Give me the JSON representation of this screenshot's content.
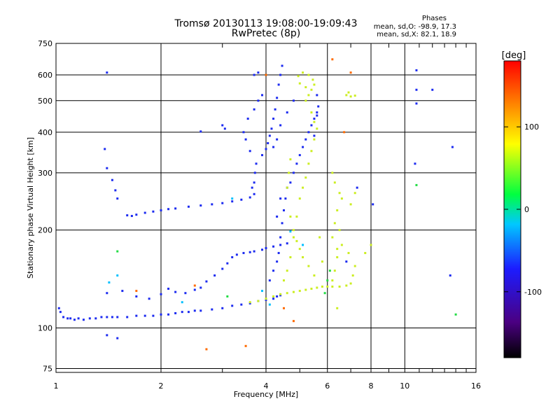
{
  "header": {
    "title_line1": "Tromsø 20130113 19:08:00-19:09:43",
    "title_line2": "RwPretec (8p)"
  },
  "phase_box": {
    "heading": "Phases",
    "line_o": "mean, sd,O: -98.9, 17.3",
    "line_x": "mean, sd,X:  82.1, 18.9"
  },
  "chart_data": {
    "type": "scatter",
    "title": "Tromsø 20130113 19:08:00-19:09:43",
    "subtitle": "RwPretec (8p)",
    "xlabel": "Frequency [MHz]",
    "ylabel": "Stationary phase Virtual Height [km]",
    "x_scale": "log",
    "y_scale": "log",
    "xlim": [
      1,
      16
    ],
    "ylim": [
      73,
      750
    ],
    "x_ticks": [
      1,
      2,
      4,
      6,
      8,
      10,
      16
    ],
    "x_minor_ticks": [
      3,
      5,
      7,
      9,
      11,
      12,
      13,
      14,
      15
    ],
    "y_ticks": [
      75,
      100,
      200,
      300,
      400,
      500,
      600,
      750
    ],
    "grid": true,
    "colorbar": {
      "label": "[deg]",
      "range": [
        -180,
        180
      ],
      "ticks": [
        100,
        0,
        -100
      ],
      "colors": [
        "#000000",
        "#4b0082",
        "#1c1cff",
        "#00c8ff",
        "#00ff40",
        "#ffff00",
        "#ff7f00",
        "#ff0000"
      ]
    },
    "series": [
      {
        "color": "#1c2bf0",
        "points": [
          [
            1.05,
            108
          ],
          [
            1.08,
            107
          ],
          [
            1.1,
            107
          ],
          [
            1.13,
            106
          ],
          [
            1.16,
            107
          ],
          [
            1.2,
            106
          ],
          [
            1.25,
            107
          ],
          [
            1.3,
            107
          ],
          [
            1.35,
            108
          ],
          [
            1.4,
            108
          ],
          [
            1.45,
            108
          ],
          [
            1.5,
            108
          ],
          [
            1.6,
            108
          ],
          [
            1.7,
            109
          ],
          [
            1.8,
            109
          ],
          [
            1.9,
            109
          ],
          [
            2.0,
            110
          ],
          [
            2.1,
            110
          ],
          [
            2.2,
            111
          ],
          [
            2.3,
            112
          ],
          [
            2.4,
            112
          ],
          [
            2.5,
            113
          ],
          [
            2.6,
            113
          ],
          [
            2.8,
            114
          ],
          [
            3.0,
            115
          ],
          [
            3.2,
            117
          ],
          [
            3.4,
            118
          ],
          [
            3.6,
            119
          ],
          [
            3.8,
            121
          ],
          [
            4.0,
            122
          ],
          [
            4.2,
            123
          ],
          [
            4.3,
            125
          ],
          [
            4.4,
            126
          ],
          [
            1.4,
            128
          ],
          [
            1.55,
            130
          ],
          [
            1.7,
            125
          ],
          [
            1.85,
            123
          ],
          [
            2.0,
            127
          ],
          [
            2.1,
            132
          ],
          [
            2.2,
            129
          ],
          [
            2.35,
            128
          ],
          [
            2.5,
            131
          ],
          [
            2.6,
            133
          ],
          [
            2.7,
            139
          ],
          [
            2.85,
            145
          ],
          [
            3.0,
            152
          ],
          [
            3.1,
            158
          ],
          [
            3.2,
            165
          ],
          [
            3.3,
            168
          ],
          [
            3.45,
            170
          ],
          [
            3.6,
            171
          ],
          [
            3.7,
            172
          ],
          [
            3.9,
            174
          ],
          [
            4.0,
            176
          ],
          [
            4.2,
            178
          ],
          [
            4.4,
            180
          ],
          [
            4.6,
            182
          ],
          [
            1.6,
            222
          ],
          [
            1.65,
            221
          ],
          [
            1.7,
            223
          ],
          [
            1.8,
            226
          ],
          [
            1.9,
            228
          ],
          [
            2.0,
            230
          ],
          [
            2.1,
            232
          ],
          [
            2.2,
            233
          ],
          [
            2.4,
            236
          ],
          [
            2.6,
            238
          ],
          [
            2.8,
            240
          ],
          [
            3.0,
            242
          ],
          [
            3.2,
            245
          ],
          [
            3.4,
            248
          ],
          [
            3.6,
            252
          ],
          [
            3.7,
            258
          ],
          [
            3.65,
            270
          ],
          [
            3.7,
            280
          ],
          [
            3.72,
            300
          ],
          [
            3.75,
            320
          ],
          [
            3.9,
            340
          ],
          [
            4.0,
            355
          ],
          [
            4.05,
            370
          ],
          [
            4.1,
            390
          ],
          [
            4.15,
            410
          ],
          [
            4.2,
            440
          ],
          [
            4.25,
            470
          ],
          [
            4.3,
            510
          ],
          [
            4.35,
            560
          ],
          [
            4.4,
            600
          ],
          [
            4.45,
            640
          ],
          [
            3.6,
            350
          ],
          [
            3.5,
            380
          ],
          [
            3.45,
            400
          ],
          [
            3.55,
            440
          ],
          [
            3.7,
            470
          ],
          [
            3.8,
            500
          ],
          [
            3.9,
            520
          ],
          [
            3.7,
            600
          ],
          [
            3.8,
            610
          ],
          [
            3.0,
            420
          ],
          [
            3.05,
            410
          ],
          [
            2.6,
            402
          ],
          [
            4.1,
            140
          ],
          [
            4.2,
            150
          ],
          [
            4.3,
            160
          ],
          [
            4.35,
            170
          ],
          [
            4.4,
            190
          ],
          [
            4.45,
            210
          ],
          [
            4.5,
            230
          ],
          [
            4.55,
            250
          ],
          [
            4.6,
            270
          ],
          [
            4.7,
            280
          ],
          [
            4.8,
            300
          ],
          [
            4.9,
            320
          ],
          [
            5.0,
            340
          ],
          [
            5.1,
            360
          ],
          [
            5.2,
            380
          ],
          [
            5.3,
            400
          ],
          [
            5.4,
            420
          ],
          [
            5.5,
            440
          ],
          [
            5.6,
            460
          ],
          [
            5.65,
            480
          ],
          [
            4.2,
            360
          ],
          [
            4.3,
            380
          ],
          [
            4.4,
            420
          ],
          [
            4.6,
            460
          ],
          [
            4.8,
            500
          ],
          [
            5.5,
            390
          ],
          [
            5.6,
            450
          ],
          [
            5.6,
            520
          ],
          [
            4.3,
            220
          ],
          [
            4.4,
            250
          ],
          [
            1.4,
            95
          ],
          [
            1.5,
            93
          ],
          [
            1.4,
            610
          ],
          [
            1.38,
            355
          ],
          [
            1.4,
            310
          ],
          [
            1.45,
            285
          ],
          [
            1.48,
            265
          ],
          [
            1.5,
            250
          ],
          [
            1.02,
            115
          ],
          [
            1.03,
            112
          ],
          [
            10.8,
            620
          ],
          [
            10.8,
            490
          ],
          [
            10.8,
            540
          ],
          [
            12.0,
            540
          ],
          [
            13.7,
            360
          ],
          [
            13.5,
            145
          ],
          [
            10.7,
            320
          ],
          [
            8.1,
            240
          ],
          [
            7.3,
            270
          ],
          [
            6.8,
            160
          ]
        ]
      },
      {
        "color": "#ccee22",
        "points": [
          [
            3.6,
            120
          ],
          [
            3.8,
            121
          ],
          [
            4.0,
            123
          ],
          [
            4.2,
            125
          ],
          [
            4.4,
            127
          ],
          [
            4.6,
            128
          ],
          [
            4.8,
            129
          ],
          [
            5.0,
            130
          ],
          [
            5.2,
            131
          ],
          [
            5.4,
            132
          ],
          [
            5.6,
            133
          ],
          [
            5.8,
            134
          ],
          [
            6.0,
            134
          ],
          [
            6.2,
            134
          ],
          [
            6.5,
            134
          ],
          [
            6.8,
            135
          ],
          [
            7.0,
            137
          ],
          [
            7.1,
            145
          ],
          [
            7.2,
            155
          ],
          [
            6.9,
            170
          ],
          [
            6.6,
            180
          ],
          [
            6.4,
            165
          ],
          [
            6.3,
            150
          ],
          [
            6.2,
            140
          ],
          [
            5.5,
            145
          ],
          [
            5.3,
            155
          ],
          [
            5.1,
            165
          ],
          [
            5.0,
            175
          ],
          [
            4.9,
            185
          ],
          [
            4.8,
            200
          ],
          [
            4.9,
            220
          ],
          [
            5.0,
            250
          ],
          [
            5.1,
            270
          ],
          [
            5.2,
            290
          ],
          [
            5.3,
            320
          ],
          [
            5.4,
            350
          ],
          [
            5.5,
            380
          ],
          [
            5.6,
            410
          ],
          [
            5.5,
            430
          ],
          [
            5.4,
            460
          ],
          [
            5.2,
            500
          ],
          [
            5.3,
            520
          ],
          [
            5.4,
            540
          ],
          [
            5.5,
            560
          ],
          [
            5.45,
            580
          ],
          [
            5.3,
            600
          ],
          [
            5.1,
            610
          ],
          [
            4.95,
            595
          ],
          [
            5.0,
            565
          ],
          [
            5.2,
            550
          ],
          [
            6.8,
            520
          ],
          [
            7.0,
            515
          ],
          [
            7.2,
            518
          ],
          [
            6.9,
            530
          ],
          [
            6.2,
            300
          ],
          [
            6.3,
            280
          ],
          [
            6.5,
            260
          ],
          [
            6.6,
            250
          ],
          [
            6.4,
            230
          ],
          [
            6.3,
            210
          ],
          [
            6.2,
            190
          ],
          [
            6.4,
            175
          ],
          [
            6.5,
            200
          ],
          [
            7.2,
            260
          ],
          [
            7.0,
            240
          ],
          [
            6.4,
            115
          ],
          [
            7.7,
            170
          ],
          [
            8.0,
            180
          ],
          [
            4.7,
            220
          ],
          [
            4.8,
            190
          ],
          [
            4.5,
            140
          ],
          [
            4.6,
            150
          ],
          [
            4.7,
            165
          ],
          [
            5.8,
            160
          ],
          [
            5.7,
            190
          ],
          [
            4.6,
            270
          ],
          [
            4.65,
            300
          ],
          [
            4.7,
            330
          ]
        ]
      },
      {
        "color": "#ff6a00",
        "points": [
          [
            4.0,
            600
          ],
          [
            6.2,
            670
          ],
          [
            7.0,
            610
          ],
          [
            6.7,
            400
          ],
          [
            4.5,
            115
          ],
          [
            4.8,
            105
          ],
          [
            3.5,
            88
          ],
          [
            2.7,
            86
          ],
          [
            2.5,
            135
          ],
          [
            1.7,
            130
          ]
        ]
      },
      {
        "color": "#00c0ff",
        "points": [
          [
            1.42,
            138
          ],
          [
            1.5,
            145
          ],
          [
            2.3,
            120
          ],
          [
            3.2,
            250
          ],
          [
            5.1,
            180
          ],
          [
            4.7,
            198
          ],
          [
            3.9,
            130
          ],
          [
            4.1,
            118
          ]
        ]
      },
      {
        "color": "#22dd44",
        "points": [
          [
            1.5,
            172
          ],
          [
            3.1,
            125
          ],
          [
            6.1,
            150
          ],
          [
            10.8,
            275
          ],
          [
            14.0,
            110
          ],
          [
            5.9,
            128
          ],
          [
            6.0,
            140
          ]
        ]
      }
    ]
  }
}
